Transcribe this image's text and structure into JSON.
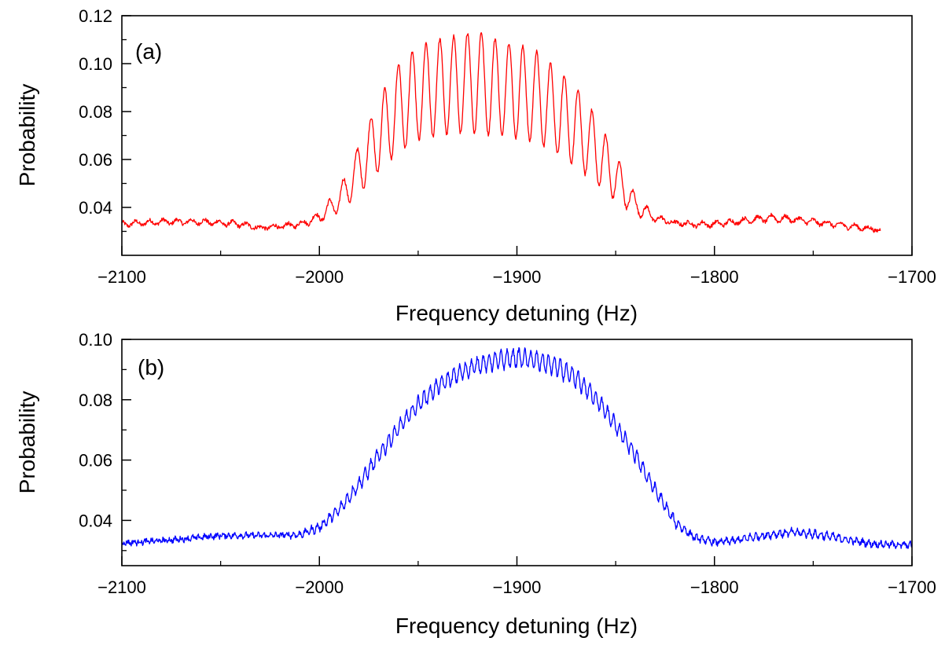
{
  "chart_data": [
    {
      "type": "line",
      "panel_label": "(a)",
      "xlabel": "Frequency detuning (Hz)",
      "ylabel": "Probability",
      "xlim": [
        -2100,
        -1700
      ],
      "ylim": [
        0.02,
        0.12
      ],
      "xticks": [
        -2100,
        -2000,
        -1900,
        -1800,
        -1700
      ],
      "yticks": [
        0.04,
        0.06,
        0.08,
        0.1,
        0.12
      ],
      "ytick_labels": [
        "0.04",
        "0.06",
        "0.08",
        "0.10",
        "0.12"
      ],
      "grid": false,
      "line_color": "#ff0000",
      "x_range": [
        -2100,
        -1716
      ],
      "envelope": {
        "x": [
          -2100,
          -2080,
          -2060,
          -2040,
          -2030,
          -2020,
          -2010,
          -2000,
          -1990,
          -1980,
          -1970,
          -1960,
          -1950,
          -1940,
          -1930,
          -1920,
          -1910,
          -1900,
          -1890,
          -1880,
          -1870,
          -1860,
          -1850,
          -1840,
          -1830,
          -1820,
          -1810,
          -1800,
          -1790,
          -1780,
          -1770,
          -1760,
          -1750,
          -1740,
          -1730,
          -1716
        ],
        "upper": [
          0.034,
          0.035,
          0.035,
          0.034,
          0.032,
          0.033,
          0.034,
          0.038,
          0.048,
          0.066,
          0.085,
          0.1,
          0.107,
          0.11,
          0.112,
          0.114,
          0.11,
          0.108,
          0.105,
          0.098,
          0.09,
          0.078,
          0.062,
          0.045,
          0.037,
          0.034,
          0.034,
          0.034,
          0.035,
          0.036,
          0.037,
          0.036,
          0.035,
          0.034,
          0.033,
          0.031
        ],
        "lower": [
          0.032,
          0.033,
          0.033,
          0.032,
          0.031,
          0.031,
          0.032,
          0.034,
          0.038,
          0.046,
          0.055,
          0.063,
          0.068,
          0.07,
          0.071,
          0.071,
          0.07,
          0.069,
          0.067,
          0.063,
          0.057,
          0.05,
          0.043,
          0.037,
          0.034,
          0.033,
          0.032,
          0.032,
          0.033,
          0.034,
          0.034,
          0.034,
          0.033,
          0.032,
          0.031,
          0.03
        ]
      },
      "oscillation_period": 7
    },
    {
      "type": "line",
      "panel_label": "(b)",
      "xlabel": "Frequency detuning (Hz)",
      "ylabel": "Probability",
      "xlim": [
        -2100,
        -1700
      ],
      "ylim": [
        0.025,
        0.1
      ],
      "xticks": [
        -2100,
        -2000,
        -1900,
        -1800,
        -1700
      ],
      "yticks": [
        0.04,
        0.06,
        0.08,
        0.1
      ],
      "ytick_labels": [
        "0.04",
        "0.06",
        "0.08",
        "0.10"
      ],
      "grid": false,
      "line_color": "#0000ff",
      "x_range": [
        -2100,
        -1700
      ],
      "envelope": {
        "x": [
          -2100,
          -2075,
          -2050,
          -2025,
          -2010,
          -2000,
          -1990,
          -1980,
          -1970,
          -1960,
          -1950,
          -1940,
          -1930,
          -1920,
          -1910,
          -1900,
          -1890,
          -1880,
          -1870,
          -1860,
          -1850,
          -1840,
          -1830,
          -1820,
          -1810,
          -1800,
          -1790,
          -1780,
          -1770,
          -1760,
          -1750,
          -1740,
          -1730,
          -1720,
          -1700
        ],
        "upper": [
          0.033,
          0.034,
          0.0355,
          0.0355,
          0.036,
          0.039,
          0.045,
          0.054,
          0.064,
          0.073,
          0.081,
          0.087,
          0.091,
          0.094,
          0.096,
          0.097,
          0.096,
          0.094,
          0.09,
          0.083,
          0.074,
          0.064,
          0.052,
          0.041,
          0.035,
          0.0335,
          0.034,
          0.0355,
          0.0365,
          0.037,
          0.0365,
          0.0355,
          0.034,
          0.033,
          0.0325
        ],
        "lower": [
          0.032,
          0.033,
          0.0345,
          0.0345,
          0.0345,
          0.0365,
          0.042,
          0.05,
          0.059,
          0.068,
          0.076,
          0.082,
          0.086,
          0.089,
          0.09,
          0.091,
          0.09,
          0.088,
          0.084,
          0.078,
          0.069,
          0.059,
          0.048,
          0.038,
          0.0335,
          0.032,
          0.0325,
          0.0335,
          0.0345,
          0.035,
          0.0345,
          0.0335,
          0.0325,
          0.0315,
          0.031
        ]
      },
      "oscillation_period": 3
    }
  ]
}
